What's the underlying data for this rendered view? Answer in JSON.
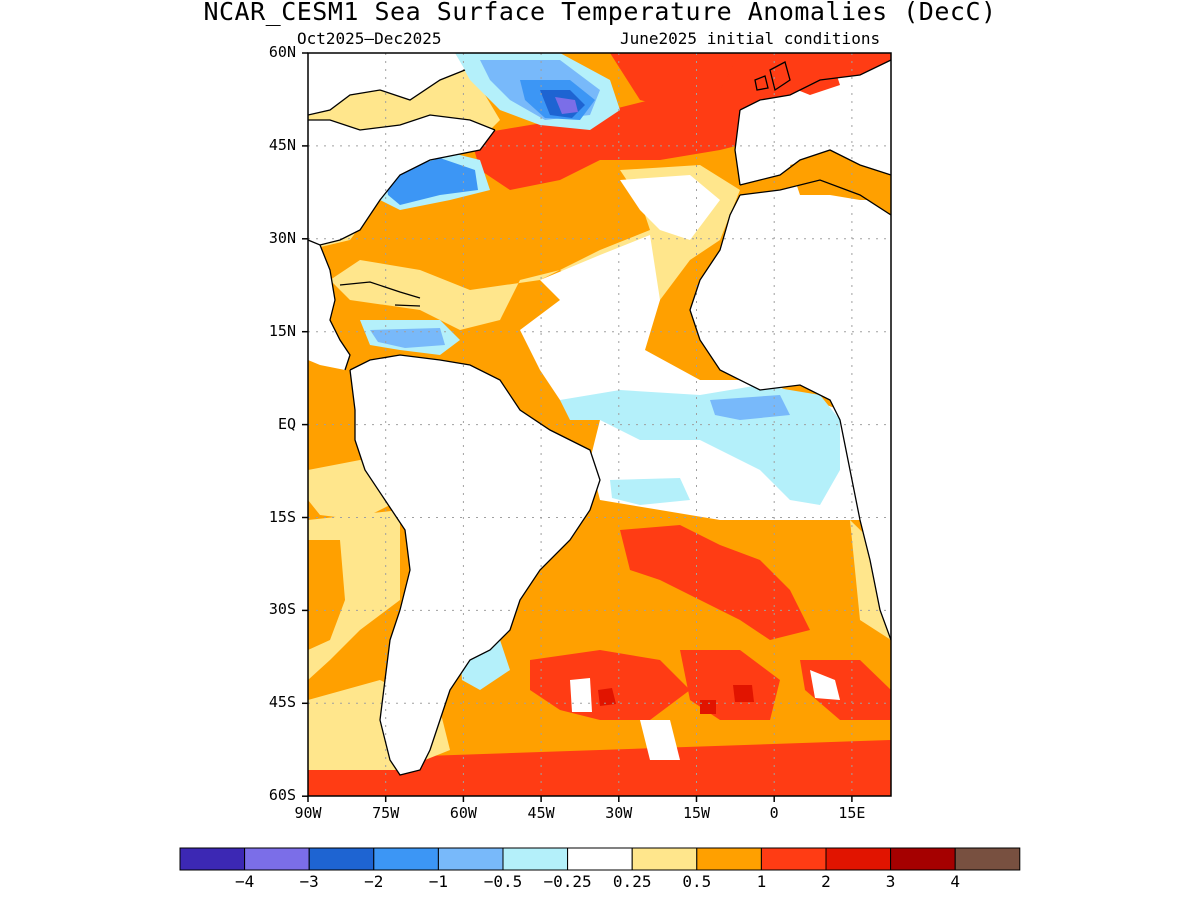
{
  "title": "NCAR_CESM1 Sea Surface Temperature Anomalies (DecC)",
  "subtitle_left": "Oct2025–Dec2025",
  "subtitle_right": "June2025 initial conditions",
  "lat_labels": [
    "60N",
    "45N",
    "30N",
    "15N",
    "EQ",
    "15S",
    "30S",
    "45S",
    "60S"
  ],
  "lon_labels": [
    "90W",
    "75W",
    "60W",
    "45W",
    "30W",
    "15W",
    "0",
    "15E"
  ],
  "colorbar": {
    "colors": [
      "#3c28b4",
      "#7b6ee8",
      "#1e64d2",
      "#3c96f5",
      "#78b9fa",
      "#b4f0fa",
      "#ffffff",
      "#ffe68c",
      "#ffa000",
      "#ff3c14",
      "#e11400",
      "#a50000",
      "#785040"
    ],
    "labels": [
      "−4",
      "−3",
      "−2",
      "−1",
      "−0.5",
      "−0.25",
      "0.25",
      "0.5",
      "1",
      "2",
      "3",
      "4"
    ]
  },
  "map_colors": {
    "land": "#ffffff",
    "coast": "#000000",
    "grid": "#a0a0a0"
  }
}
